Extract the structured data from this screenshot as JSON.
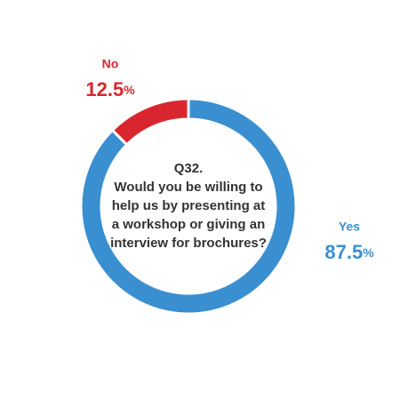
{
  "chart_data": {
    "type": "donut",
    "title": [
      "Q32.",
      "Would you be willing to",
      "help us by presenting at",
      "a workshop or giving an",
      "interview for brochures?"
    ],
    "categories": [
      "Yes",
      "No"
    ],
    "values": [
      87.5,
      12.5
    ],
    "value_labels": [
      "87.5%",
      "12.5%"
    ],
    "colors": [
      "#3a8fd0",
      "#d9262e"
    ]
  }
}
